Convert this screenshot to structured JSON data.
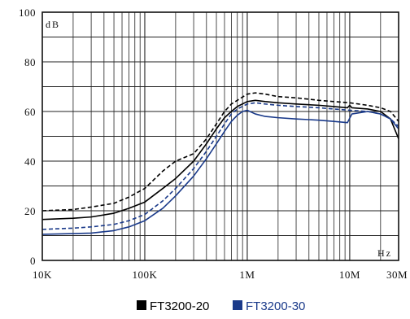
{
  "chart_data": {
    "type": "line",
    "title": "",
    "xlabel": "Hz",
    "ylabel": "dB",
    "x_scale": "log",
    "xlim": [
      10000,
      30000000
    ],
    "ylim": [
      0,
      100
    ],
    "grid": true,
    "legend_position": "bottom-center",
    "y_ticks": [
      0,
      20,
      40,
      60,
      80,
      100
    ],
    "x_ticks": [
      {
        "value": 10000,
        "label": "10K"
      },
      {
        "value": 100000,
        "label": "100K"
      },
      {
        "value": 1000000,
        "label": "1M"
      },
      {
        "value": 10000000,
        "label": "10M"
      },
      {
        "value": 30000000,
        "label": "30M"
      }
    ],
    "series": [
      {
        "name": "FT3200-20",
        "color": "#000000",
        "style": "solid",
        "x": [
          10000,
          20000,
          30000,
          50000,
          70000,
          100000,
          150000,
          200000,
          300000,
          400000,
          500000,
          600000,
          700000,
          800000,
          1000000,
          1200000,
          1500000,
          2000000,
          3000000,
          5000000,
          7000000,
          9500000,
          10000000,
          10500000,
          15000000,
          20000000,
          25000000,
          30000000
        ],
        "y": [
          16.5,
          17,
          17.5,
          19,
          21,
          23.5,
          29,
          33,
          40,
          47,
          53,
          57.5,
          60,
          62,
          64,
          64.5,
          64,
          63.5,
          63,
          62.5,
          62,
          61.5,
          62.5,
          61.5,
          61,
          60,
          57,
          49
        ]
      },
      {
        "name": "FT3200-20",
        "color": "#000000",
        "style": "dashed",
        "x": [
          10000,
          20000,
          30000,
          50000,
          70000,
          100000,
          150000,
          200000,
          300000,
          400000,
          500000,
          600000,
          700000,
          800000,
          1000000,
          1200000,
          1500000,
          2000000,
          3000000,
          5000000,
          7000000,
          10000000,
          15000000,
          20000000,
          25000000,
          30000000
        ],
        "y": [
          20,
          20.5,
          21.5,
          23,
          25.5,
          29,
          36,
          40,
          43,
          49,
          55,
          60,
          63,
          64.5,
          67,
          67.5,
          67,
          66,
          65.5,
          64.5,
          64,
          63.5,
          62.5,
          61.5,
          60,
          56
        ]
      },
      {
        "name": "FT3200-30",
        "color": "#1a3a8a",
        "style": "solid",
        "x": [
          10000,
          20000,
          30000,
          50000,
          70000,
          100000,
          150000,
          200000,
          300000,
          400000,
          500000,
          600000,
          700000,
          800000,
          900000,
          1000000,
          1200000,
          1500000,
          2000000,
          3000000,
          5000000,
          7000000,
          9500000,
          10500000,
          15000000,
          20000000,
          25000000,
          30000000
        ],
        "y": [
          10.5,
          10.8,
          11,
          12,
          13.5,
          16,
          21,
          26,
          34,
          41,
          47,
          52,
          56,
          58.5,
          60,
          60.5,
          59,
          58,
          57.5,
          57,
          56.5,
          56,
          55.5,
          59,
          60,
          59,
          57,
          53
        ]
      },
      {
        "name": "FT3200-30",
        "color": "#1a3a8a",
        "style": "dashed",
        "x": [
          10000,
          20000,
          30000,
          50000,
          70000,
          100000,
          150000,
          200000,
          300000,
          400000,
          500000,
          600000,
          700000,
          800000,
          1000000,
          1200000,
          1500000,
          2000000,
          3000000,
          5000000,
          7000000,
          10000000,
          15000000,
          20000000,
          25000000,
          30000000
        ],
        "y": [
          12.5,
          13,
          13.5,
          14.5,
          16,
          18.5,
          24,
          29,
          37,
          44,
          50,
          55,
          59,
          61,
          63,
          63.5,
          63,
          62.5,
          62,
          61.5,
          61,
          60.5,
          60,
          59,
          57,
          54
        ]
      }
    ],
    "legend": [
      {
        "label": "FT3200-20",
        "color": "#000000"
      },
      {
        "label": "FT3200-30",
        "color": "#1a3a8a"
      }
    ]
  }
}
